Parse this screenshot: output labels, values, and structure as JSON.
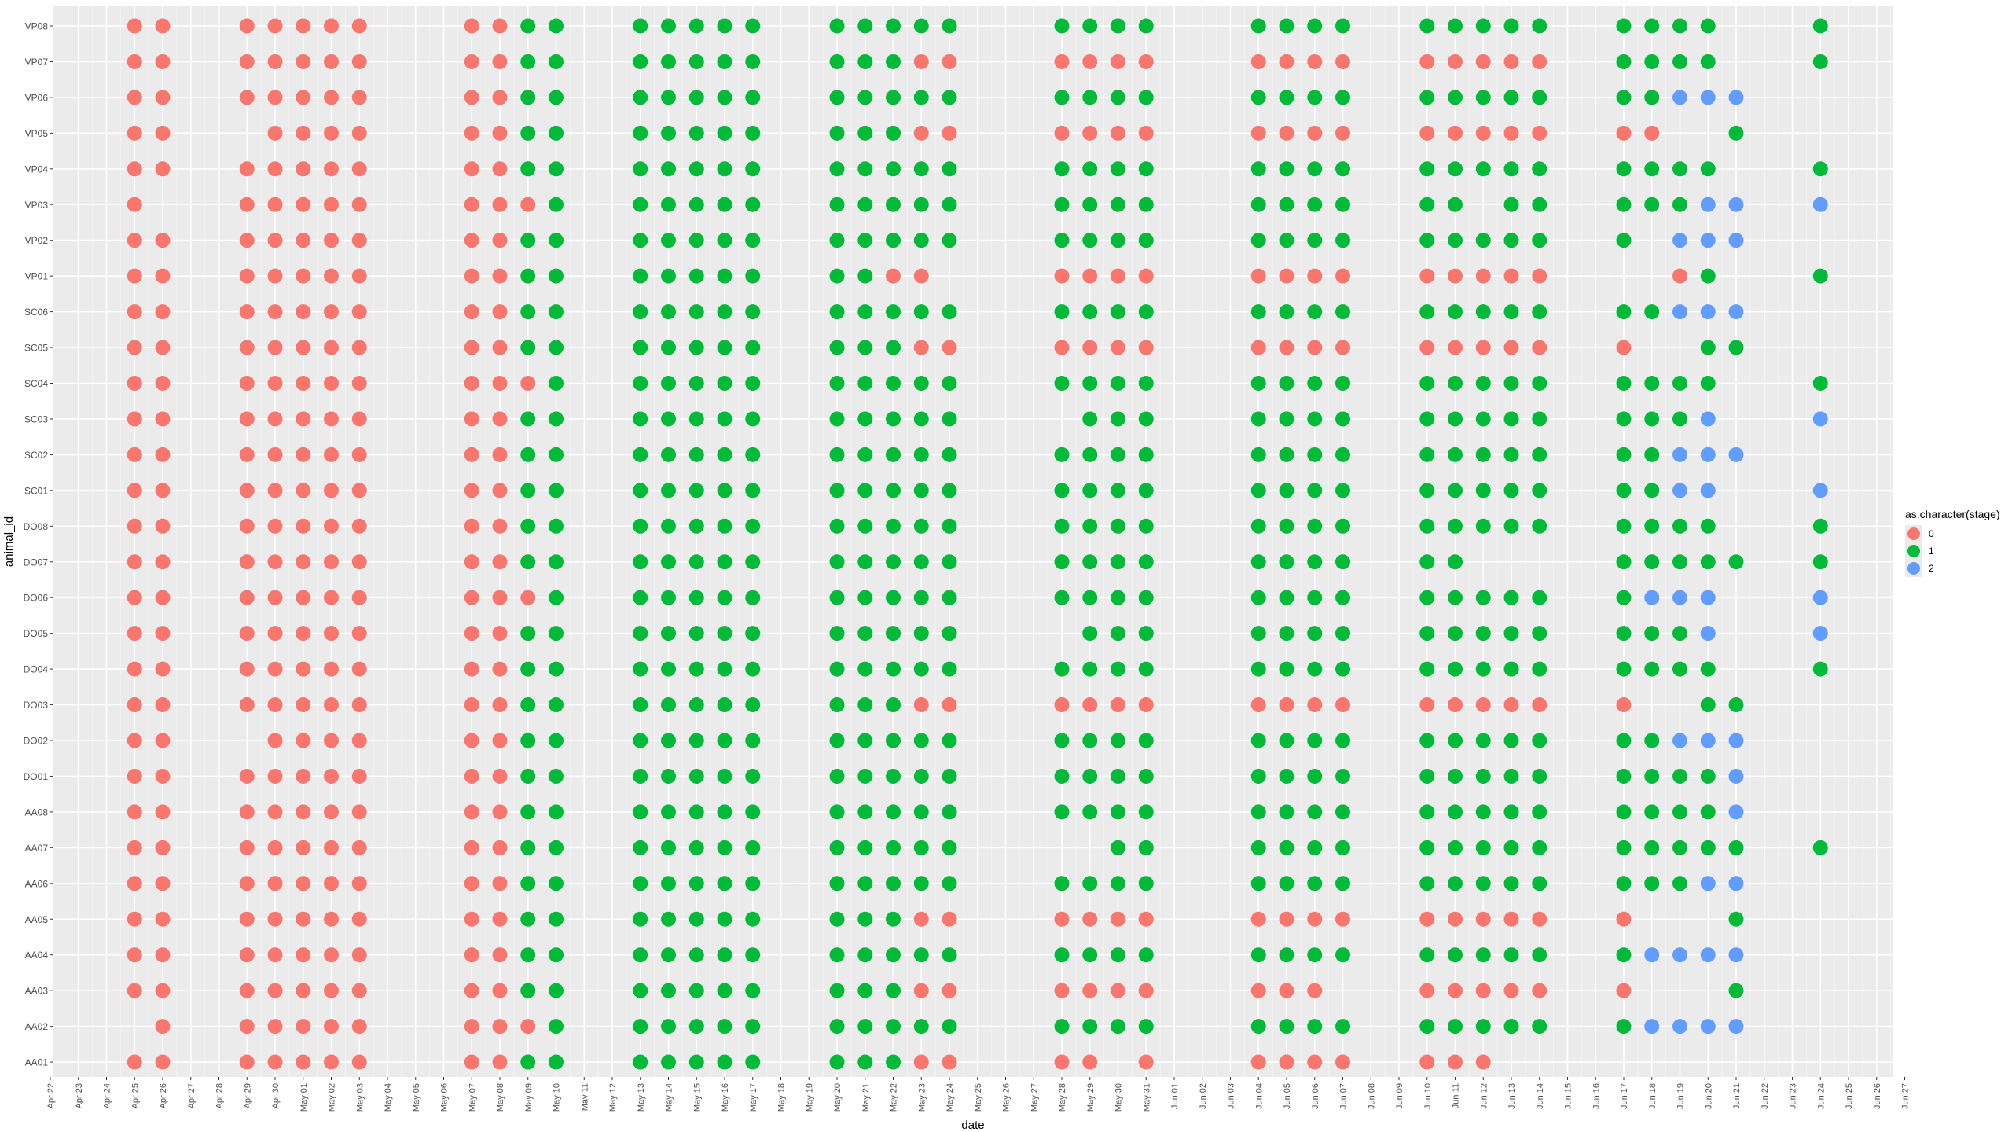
{
  "chart_data": {
    "type": "scatter",
    "title": "",
    "xlabel": "date",
    "ylabel": "animal_id",
    "x_dates": [
      "Apr 22",
      "Apr 23",
      "Apr 24",
      "Apr 25",
      "Apr 26",
      "Apr 27",
      "Apr 28",
      "Apr 29",
      "Apr 30",
      "May 01",
      "May 02",
      "May 03",
      "May 04",
      "May 05",
      "May 06",
      "May 07",
      "May 08",
      "May 09",
      "May 10",
      "May 11",
      "May 12",
      "May 13",
      "May 14",
      "May 15",
      "May 16",
      "May 17",
      "May 18",
      "May 19",
      "May 20",
      "May 21",
      "May 22",
      "May 23",
      "May 24",
      "May 25",
      "May 26",
      "May 27",
      "May 28",
      "May 29",
      "May 30",
      "May 31",
      "Jun 01",
      "Jun 02",
      "Jun 03",
      "Jun 04",
      "Jun 05",
      "Jun 06",
      "Jun 07",
      "Jun 08",
      "Jun 09",
      "Jun 10",
      "Jun 11",
      "Jun 12",
      "Jun 13",
      "Jun 14",
      "Jun 15",
      "Jun 16",
      "Jun 17",
      "Jun 18",
      "Jun 19",
      "Jun 20",
      "Jun 21",
      "Jun 22",
      "Jun 23",
      "Jun 24",
      "Jun 25",
      "Jun 26",
      "Jun 27"
    ],
    "obs_dates": [
      "Apr 25",
      "Apr 26",
      "Apr 29",
      "Apr 30",
      "May 01",
      "May 02",
      "May 03",
      "May 07",
      "May 08",
      "May 09",
      "May 10",
      "May 13",
      "May 14",
      "May 15",
      "May 16",
      "May 17",
      "May 20",
      "May 21",
      "May 22",
      "May 23",
      "May 24",
      "May 28",
      "May 29",
      "May 30",
      "May 31",
      "Jun 04",
      "Jun 05",
      "Jun 06",
      "Jun 07",
      "Jun 10",
      "Jun 11",
      "Jun 12",
      "Jun 13",
      "Jun 14",
      "Jun 17",
      "Jun 18",
      "Jun 19",
      "Jun 20",
      "Jun 21",
      "Jun 24"
    ],
    "animals": [
      "VP08",
      "VP07",
      "VP06",
      "VP05",
      "VP04",
      "VP03",
      "VP02",
      "VP01",
      "SC06",
      "SC05",
      "SC04",
      "SC03",
      "SC02",
      "SC01",
      "DO08",
      "DO07",
      "DO06",
      "DO05",
      "DO04",
      "DO03",
      "DO02",
      "DO01",
      "AA08",
      "AA07",
      "AA06",
      "AA05",
      "AA04",
      "AA03",
      "AA02",
      "AA01"
    ],
    "stages": {
      "VP08": "00000000011111111111111111111111111111-1",
      "VP07": "00000000011111111110000000000000001111-1",
      "VP06": "000000000111111111111111111111111111222-2",
      "VP05": "00-000000111111111100000000000000000--1-1",
      "VP04": "00000000011111111111111111111111111111-1",
      "VP03": "0-00000000111111111111111111111-11111222-2",
      "VP02": "00000000011111111111111111111111111-222-2",
      "VP01": "00000000011111111100-0000000000000--01-1",
      "SC06": "000000000111111111111111111111111111222-",
      "SC05": "00000000011111111110000000000000000--11-1",
      "SC04": "00000000001111111111111111111111111111-1",
      "SC03": "000000000111111111111-1111111111111112-2",
      "SC02": "00000000011111111111111111111111111122 2-2",
      "SC01": "0000000001111111111111111111111111112 2-2",
      "DO08": "00000000011111111111111111111111111111-1",
      "DO07": "0000000001111111111111111111111---111111-",
      "DO06": "00000000001111111111111111111111111222-2",
      "DO05": "000000000111111111111-1111111111111112-2",
      "DO04": "00000000011111111111111111111111111111-1",
      "DO03": "00000000011111111110000000000000000--11-1",
      "DO02": "00-00000011111111111111111111111111122 2-",
      "DO01": "000000000111111111111111111111111111112-2",
      "AA08": "000000000111111111111111111111111111112-2",
      "AA07": "000000000111111111111--11111111111111111-1",
      "AA06": "000000000111111111111111111111111111122--2",
      "AA05": "00000000011111111110000000000000000---1",
      "AA04": "000000000111111111111111111111111112222-",
      "AA03": "0000000001111111111000000000-000000---1",
      "AA02": "-00000000011111111111111111111111112222-2",
      "AA01": "00000000011111111110000-00000000-------"
    },
    "series": [
      {
        "name": "0",
        "color": "#F8766D"
      },
      {
        "name": "1",
        "color": "#00BA38"
      },
      {
        "name": "2",
        "color": "#619CFF"
      }
    ],
    "legend_title": "as.character(stage)",
    "legend_position": "right",
    "grid": true
  }
}
